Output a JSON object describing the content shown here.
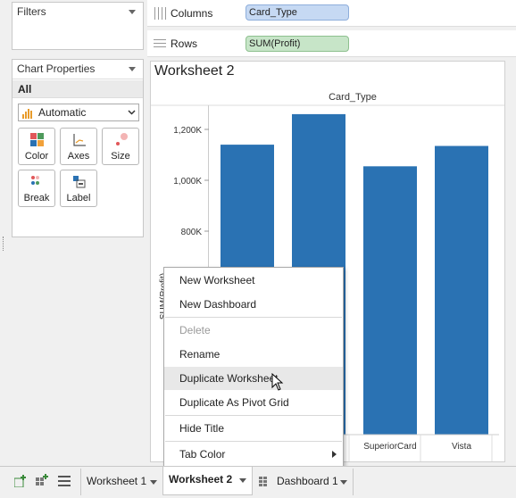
{
  "filters": {
    "label": "Filters"
  },
  "marks": {
    "title": "Chart Properties",
    "selector": "All",
    "mark_type": "Automatic",
    "buttons": [
      "Color",
      "Axes",
      "Size",
      "Break",
      "Label"
    ]
  },
  "shelves": {
    "columns_label": "Columns",
    "columns_pill": "Card_Type",
    "rows_label": "Rows",
    "rows_pill": "SUM(Profit)"
  },
  "worksheet": {
    "title": "Worksheet 2"
  },
  "chart_data": {
    "type": "bar",
    "title": "",
    "column_header": "Card_Type",
    "ylabel": "SUM(Profit)",
    "y_ticks": [
      "800K",
      "1,000K",
      "1,200K"
    ],
    "y_tick_values": [
      800000,
      1000000,
      1200000
    ],
    "visible_categories": [
      "SuperiorCard",
      "Vista"
    ],
    "values": [
      1140000,
      1260000,
      1055000,
      1135000
    ],
    "color": "#2a72b3"
  },
  "context_menu": {
    "items": [
      "New Worksheet",
      "New Dashboard",
      "Delete",
      "Rename",
      "Duplicate Worksheet",
      "Duplicate As Pivot Grid",
      "Hide Title",
      "Tab Color"
    ]
  },
  "tabs": [
    "Worksheet 1",
    "Worksheet 2",
    "Dashboard 1"
  ]
}
